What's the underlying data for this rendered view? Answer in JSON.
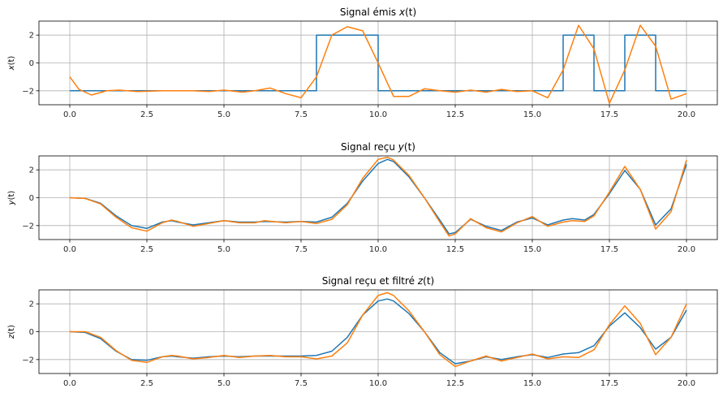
{
  "figure": {
    "background": "#ffffff"
  },
  "chart_data": [
    {
      "type": "line",
      "title": "Signal émis $x(t)$",
      "title_parts": {
        "pre": "Signal émis ",
        "var": "x",
        "arg": "(t)"
      },
      "ylabel": "$x(t)$",
      "ylabel_parts": {
        "var": "x",
        "arg": "(t)"
      },
      "xlim": [
        -1,
        21
      ],
      "ylim": [
        -3,
        3
      ],
      "xticks": [
        0.0,
        2.5,
        5.0,
        7.5,
        10.0,
        12.5,
        15.0,
        17.5,
        20.0
      ],
      "xtick_labels": [
        "0.0",
        "2.5",
        "5.0",
        "7.5",
        "10.0",
        "12.5",
        "15.0",
        "17.5",
        "20.0"
      ],
      "yticks": [
        -2,
        0,
        2
      ],
      "ytick_labels": [
        "−2",
        "0",
        "2"
      ],
      "grid": true,
      "series": [
        {
          "color": "#1f77b4",
          "x": [
            0,
            8,
            8,
            10,
            10,
            16,
            16,
            17,
            17,
            18,
            18,
            19,
            19,
            20
          ],
          "y": [
            -2,
            -2,
            2,
            2,
            -2,
            -2,
            2,
            2,
            -2,
            -2,
            2,
            2,
            -2,
            -2
          ]
        },
        {
          "color": "#ff7f0e",
          "x": [
            0,
            0.3,
            0.7,
            1.2,
            1.6,
            2.2,
            3,
            4,
            4.5,
            5,
            5.6,
            6,
            6.5,
            7,
            7.5,
            8,
            8.5,
            9,
            9.5,
            10,
            10.5,
            11,
            11.5,
            12,
            12.5,
            13,
            13.5,
            14,
            14.5,
            15,
            15.5,
            16,
            16.5,
            17,
            17.5,
            18,
            18.5,
            19,
            19.5,
            20
          ],
          "y": [
            -1.0,
            -1.9,
            -2.3,
            -2.0,
            -1.95,
            -2.05,
            -2.0,
            -2.0,
            -2.05,
            -1.95,
            -2.1,
            -2.0,
            -1.8,
            -2.2,
            -2.5,
            -1.0,
            2.0,
            2.6,
            2.3,
            0.0,
            -2.4,
            -2.4,
            -1.85,
            -2.0,
            -2.1,
            -1.95,
            -2.1,
            -1.9,
            -2.05,
            -2.0,
            -2.5,
            -0.5,
            2.7,
            1.0,
            -2.9,
            -0.5,
            2.7,
            1.2,
            -2.6,
            -2.2
          ]
        }
      ]
    },
    {
      "type": "line",
      "title": "Signal reçu $y(t)$",
      "title_parts": {
        "pre": "Signal reçu ",
        "var": "y",
        "arg": "(t)"
      },
      "ylabel": "$y(t)$",
      "ylabel_parts": {
        "var": "y",
        "arg": "(t)"
      },
      "xlim": [
        -1,
        21
      ],
      "ylim": [
        -3,
        3
      ],
      "xticks": [
        0.0,
        2.5,
        5.0,
        7.5,
        10.0,
        12.5,
        15.0,
        17.5,
        20.0
      ],
      "xtick_labels": [
        "0.0",
        "2.5",
        "5.0",
        "7.5",
        "10.0",
        "12.5",
        "15.0",
        "17.5",
        "20.0"
      ],
      "yticks": [
        -2,
        0,
        2
      ],
      "ytick_labels": [
        "−2",
        "0",
        "2"
      ],
      "grid": true,
      "series": [
        {
          "color": "#1f77b4",
          "x": [
            0,
            0.5,
            1,
            1.5,
            2,
            2.5,
            3,
            3.3,
            3.5,
            4,
            4.5,
            5,
            5.5,
            6,
            6.3,
            7,
            7.5,
            8,
            8.5,
            9,
            9.5,
            10,
            10.3,
            10.5,
            11,
            11.5,
            12,
            12.3,
            12.5,
            13,
            13.5,
            14,
            14.5,
            15,
            15.5,
            16,
            16.3,
            16.7,
            17,
            17.5,
            18,
            18.5,
            19,
            19.5,
            20
          ],
          "y": [
            0,
            -0.05,
            -0.4,
            -1.3,
            -2.0,
            -2.2,
            -1.75,
            -1.65,
            -1.75,
            -1.95,
            -1.8,
            -1.65,
            -1.75,
            -1.75,
            -1.7,
            -1.75,
            -1.7,
            -1.75,
            -1.4,
            -0.4,
            1.2,
            2.45,
            2.75,
            2.6,
            1.5,
            0.0,
            -1.6,
            -2.6,
            -2.5,
            -1.55,
            -2.05,
            -2.35,
            -1.75,
            -1.45,
            -1.95,
            -1.6,
            -1.5,
            -1.6,
            -1.2,
            0.3,
            1.95,
            0.6,
            -1.95,
            -0.8,
            2.4
          ]
        },
        {
          "color": "#ff7f0e",
          "x": [
            0,
            0.5,
            1,
            1.5,
            2,
            2.5,
            3,
            3.3,
            3.5,
            4,
            4.5,
            5,
            5.5,
            6,
            6.3,
            7,
            7.5,
            8,
            8.5,
            9,
            9.5,
            10,
            10.3,
            10.5,
            11,
            11.5,
            12,
            12.3,
            12.5,
            13,
            13.5,
            14,
            14.5,
            15,
            15.5,
            16,
            16.3,
            16.7,
            17,
            17.5,
            18,
            18.5,
            19,
            19.5,
            20
          ],
          "y": [
            0,
            -0.05,
            -0.45,
            -1.4,
            -2.15,
            -2.4,
            -1.8,
            -1.6,
            -1.7,
            -2.05,
            -1.85,
            -1.65,
            -1.8,
            -1.8,
            -1.65,
            -1.8,
            -1.7,
            -1.85,
            -1.55,
            -0.5,
            1.4,
            2.75,
            2.9,
            2.7,
            1.6,
            0.0,
            -1.75,
            -2.75,
            -2.6,
            -1.5,
            -2.15,
            -2.45,
            -1.8,
            -1.35,
            -2.05,
            -1.75,
            -1.65,
            -1.7,
            -1.3,
            0.4,
            2.25,
            0.6,
            -2.25,
            -1.0,
            2.7
          ]
        }
      ]
    },
    {
      "type": "line",
      "title": "Signal reçu et filtré $z(t)$",
      "title_parts": {
        "pre": "Signal reçu et filtré ",
        "var": "z",
        "arg": "(t)"
      },
      "ylabel": "$z(t)$",
      "ylabel_parts": {
        "var": "z",
        "arg": "(t)"
      },
      "xlim": [
        -1,
        21
      ],
      "ylim": [
        -3,
        3
      ],
      "xticks": [
        0.0,
        2.5,
        5.0,
        7.5,
        10.0,
        12.5,
        15.0,
        17.5,
        20.0
      ],
      "xtick_labels": [
        "0.0",
        "2.5",
        "5.0",
        "7.5",
        "10.0",
        "12.5",
        "15.0",
        "17.5",
        "20.0"
      ],
      "yticks": [
        -2,
        0,
        2
      ],
      "ytick_labels": [
        "−2",
        "0",
        "2"
      ],
      "grid": true,
      "series": [
        {
          "color": "#1f77b4",
          "x": [
            0,
            0.5,
            1,
            1.5,
            2,
            2.5,
            3,
            3.3,
            3.5,
            4,
            4.5,
            5,
            5.5,
            6,
            6.5,
            7,
            7.5,
            8,
            8.5,
            9,
            9.5,
            10,
            10.3,
            10.5,
            11,
            11.5,
            12,
            12.5,
            13,
            13.5,
            14,
            14.5,
            15,
            15.5,
            16,
            16.5,
            17,
            17.5,
            18,
            18.5,
            19,
            19.5,
            20
          ],
          "y": [
            0,
            -0.05,
            -0.5,
            -1.4,
            -2.0,
            -2.05,
            -1.8,
            -1.75,
            -1.8,
            -1.9,
            -1.8,
            -1.75,
            -1.8,
            -1.75,
            -1.75,
            -1.75,
            -1.75,
            -1.7,
            -1.4,
            -0.4,
            1.2,
            2.2,
            2.35,
            2.2,
            1.3,
            0.0,
            -1.5,
            -2.3,
            -2.1,
            -1.8,
            -2.0,
            -1.8,
            -1.65,
            -1.85,
            -1.6,
            -1.5,
            -1.0,
            0.4,
            1.35,
            0.3,
            -1.25,
            -0.4,
            1.55
          ]
        },
        {
          "color": "#ff7f0e",
          "x": [
            0,
            0.5,
            1,
            1.5,
            2,
            2.5,
            3,
            3.3,
            3.5,
            4,
            4.5,
            5,
            5.5,
            6,
            6.5,
            7,
            7.5,
            8,
            8.5,
            9,
            9.5,
            10,
            10.3,
            10.5,
            11,
            11.5,
            12,
            12.5,
            13,
            13.5,
            14,
            14.5,
            15,
            15.5,
            16,
            16.5,
            17,
            17.5,
            18,
            18.5,
            19,
            19.5,
            20
          ],
          "y": [
            0,
            0.0,
            -0.4,
            -1.35,
            -2.05,
            -2.2,
            -1.8,
            -1.7,
            -1.75,
            -1.95,
            -1.85,
            -1.7,
            -1.85,
            -1.75,
            -1.7,
            -1.8,
            -1.8,
            -1.95,
            -1.75,
            -0.8,
            1.2,
            2.6,
            2.8,
            2.6,
            1.5,
            0.0,
            -1.65,
            -2.5,
            -2.1,
            -1.75,
            -2.1,
            -1.85,
            -1.6,
            -1.95,
            -1.8,
            -1.85,
            -1.3,
            0.5,
            1.85,
            0.6,
            -1.65,
            -0.4,
            2.0
          ]
        }
      ]
    }
  ]
}
